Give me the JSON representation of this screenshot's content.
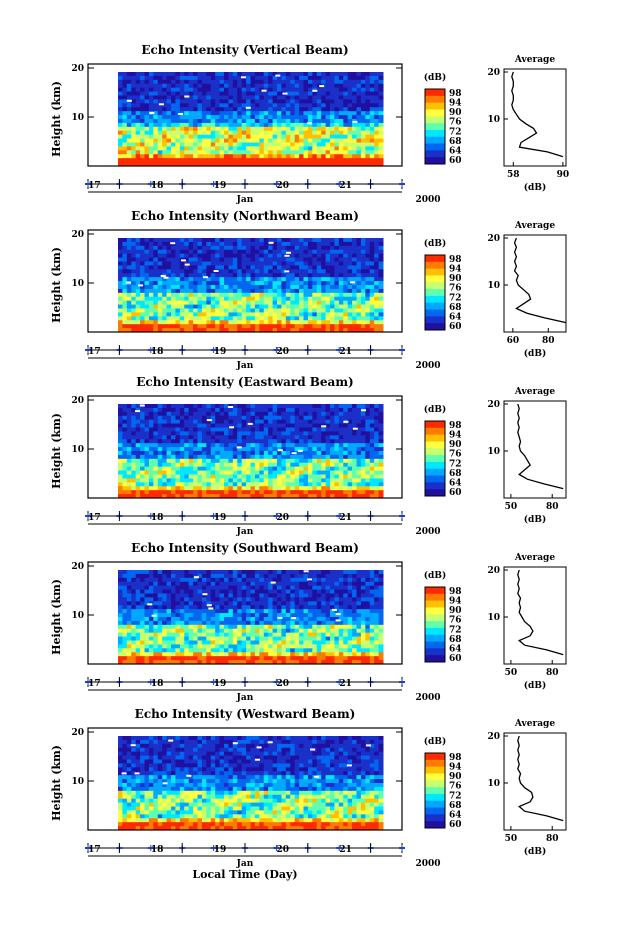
{
  "figure": {
    "x_axis_label": "Local Time (Day)",
    "x_month": "Jan",
    "x_year": "2000"
  },
  "colorbar": {
    "unit": "(dB)",
    "ticks": [
      "98",
      "94",
      "90",
      "76",
      "72",
      "68",
      "64",
      "60"
    ],
    "colors": [
      "#ff2a00",
      "#ff7a00",
      "#ffc000",
      "#ffff40",
      "#c8ff70",
      "#60ffb0",
      "#00e8ff",
      "#00a8ff",
      "#0068f0",
      "#1a30c8",
      "#2010a0"
    ]
  },
  "chart_data": [
    {
      "type": "heatmap",
      "title": "Echo Intensity (Vertical Beam)",
      "ylabel": "Height (km)",
      "y_ticks": [
        "20",
        "10"
      ],
      "ylim": [
        0,
        20
      ],
      "x_ticks": [
        "17",
        "18",
        "19",
        "20",
        "21"
      ],
      "xlim": [
        16.5,
        21.5
      ],
      "z_unit": "dB",
      "average": {
        "title": "Average",
        "xlabel": "(dB)",
        "x_ticks": [
          "58",
          "90"
        ],
        "xlim": [
          52,
          92
        ],
        "profile": [
          [
            2,
            90
          ],
          [
            3,
            80
          ],
          [
            4,
            62
          ],
          [
            5,
            63
          ],
          [
            6,
            68
          ],
          [
            7,
            73
          ],
          [
            8,
            71
          ],
          [
            9,
            66
          ],
          [
            10,
            62
          ],
          [
            11,
            60
          ],
          [
            12,
            58
          ],
          [
            13,
            57
          ],
          [
            14,
            58
          ],
          [
            15,
            58
          ],
          [
            16,
            57
          ],
          [
            17,
            58
          ],
          [
            18,
            58
          ],
          [
            19,
            57
          ],
          [
            20,
            58
          ]
        ]
      }
    },
    {
      "type": "heatmap",
      "title": "Echo Intensity (Northward Beam)",
      "ylabel": "Height (km)",
      "y_ticks": [
        "20",
        "10"
      ],
      "ylim": [
        0,
        20
      ],
      "x_ticks": [
        "17",
        "18",
        "19",
        "20",
        "21"
      ],
      "xlim": [
        16.5,
        21.5
      ],
      "z_unit": "dB",
      "average": {
        "title": "Average",
        "xlabel": "(dB)",
        "x_ticks": [
          "60",
          "80"
        ],
        "xlim": [
          55,
          90
        ],
        "profile": [
          [
            2,
            90
          ],
          [
            3,
            78
          ],
          [
            4,
            68
          ],
          [
            5,
            62
          ],
          [
            6,
            66
          ],
          [
            7,
            70
          ],
          [
            8,
            69
          ],
          [
            9,
            66
          ],
          [
            10,
            63
          ],
          [
            11,
            62
          ],
          [
            12,
            63
          ],
          [
            13,
            61
          ],
          [
            14,
            62
          ],
          [
            15,
            61
          ],
          [
            16,
            62
          ],
          [
            17,
            61
          ],
          [
            18,
            62
          ],
          [
            19,
            61
          ],
          [
            20,
            62
          ]
        ]
      }
    },
    {
      "type": "heatmap",
      "title": "Echo Intensity (Eastward Beam)",
      "ylabel": "Height (km)",
      "y_ticks": [
        "20",
        "10"
      ],
      "ylim": [
        0,
        20
      ],
      "x_ticks": [
        "17",
        "18",
        "19",
        "20",
        "21"
      ],
      "xlim": [
        16.5,
        21.5
      ],
      "z_unit": "dB",
      "average": {
        "title": "Average",
        "xlabel": "(dB)",
        "x_ticks": [
          "50",
          "80"
        ],
        "xlim": [
          45,
          90
        ],
        "profile": [
          [
            2,
            88
          ],
          [
            3,
            74
          ],
          [
            4,
            62
          ],
          [
            5,
            56
          ],
          [
            6,
            60
          ],
          [
            7,
            64
          ],
          [
            8,
            62
          ],
          [
            9,
            60
          ],
          [
            10,
            57
          ],
          [
            11,
            56
          ],
          [
            12,
            57
          ],
          [
            13,
            56
          ],
          [
            14,
            55
          ],
          [
            15,
            56
          ],
          [
            16,
            55
          ],
          [
            17,
            56
          ],
          [
            18,
            55
          ],
          [
            19,
            56
          ],
          [
            20,
            55
          ]
        ]
      }
    },
    {
      "type": "heatmap",
      "title": "Echo Intensity (Southward Beam)",
      "ylabel": "Height (km)",
      "y_ticks": [
        "20",
        "10"
      ],
      "ylim": [
        0,
        20
      ],
      "x_ticks": [
        "17",
        "18",
        "19",
        "20",
        "21"
      ],
      "xlim": [
        16.5,
        21.5
      ],
      "z_unit": "dB",
      "average": {
        "title": "Average",
        "xlabel": "(dB)",
        "x_ticks": [
          "50",
          "80"
        ],
        "xlim": [
          45,
          90
        ],
        "profile": [
          [
            2,
            88
          ],
          [
            3,
            76
          ],
          [
            4,
            60
          ],
          [
            5,
            56
          ],
          [
            6,
            64
          ],
          [
            7,
            66
          ],
          [
            8,
            64
          ],
          [
            9,
            60
          ],
          [
            10,
            58
          ],
          [
            11,
            56
          ],
          [
            12,
            57
          ],
          [
            13,
            56
          ],
          [
            14,
            57
          ],
          [
            15,
            55
          ],
          [
            16,
            56
          ],
          [
            17,
            55
          ],
          [
            18,
            56
          ],
          [
            19,
            55
          ],
          [
            20,
            56
          ]
        ]
      }
    },
    {
      "type": "heatmap",
      "title": "Echo Intensity (Westward Beam)",
      "ylabel": "Height (km)",
      "y_ticks": [
        "20",
        "10"
      ],
      "ylim": [
        0,
        20
      ],
      "x_ticks": [
        "17",
        "18",
        "19",
        "20",
        "21"
      ],
      "xlim": [
        16.5,
        21.5
      ],
      "z_unit": "dB",
      "average": {
        "title": "Average",
        "xlabel": "(dB)",
        "x_ticks": [
          "50",
          "80"
        ],
        "xlim": [
          45,
          90
        ],
        "profile": [
          [
            2,
            88
          ],
          [
            3,
            76
          ],
          [
            4,
            60
          ],
          [
            5,
            56
          ],
          [
            6,
            64
          ],
          [
            7,
            66
          ],
          [
            8,
            65
          ],
          [
            9,
            60
          ],
          [
            10,
            57
          ],
          [
            11,
            56
          ],
          [
            12,
            57
          ],
          [
            13,
            55
          ],
          [
            14,
            56
          ],
          [
            15,
            55
          ],
          [
            16,
            56
          ],
          [
            17,
            55
          ],
          [
            18,
            56
          ],
          [
            19,
            55
          ],
          [
            20,
            56
          ]
        ]
      }
    }
  ]
}
